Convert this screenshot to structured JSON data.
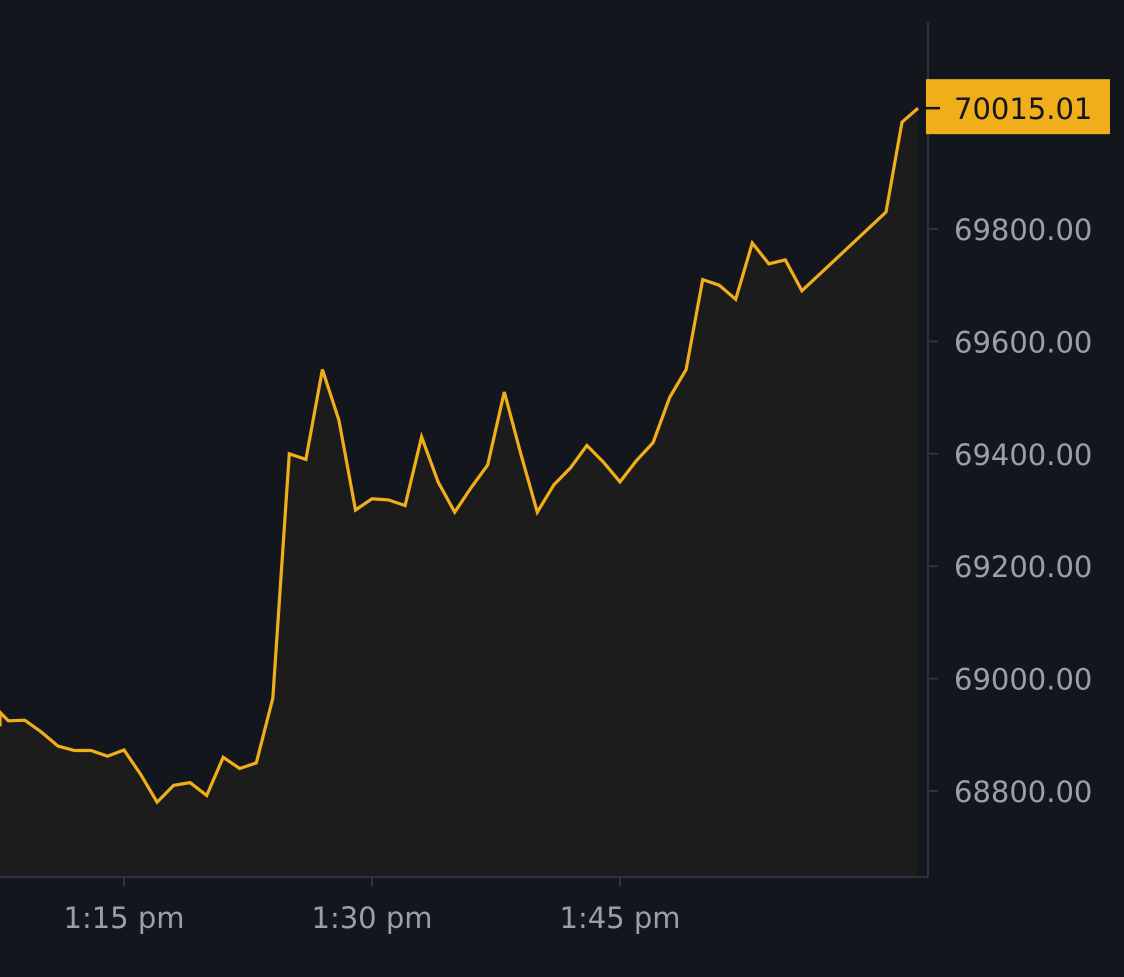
{
  "chart_data": {
    "type": "area",
    "title": "",
    "xlabel": "",
    "ylabel": "",
    "x_ticks": [
      "1:15 pm",
      "1:30 pm",
      "1:45 pm"
    ],
    "y_ticks": [
      "68800.00",
      "69000.00",
      "69200.00",
      "69400.00",
      "69600.00",
      "69800.00"
    ],
    "xlim": [
      "1:06 pm",
      "1:56 pm"
    ],
    "ylim": [
      68640,
      70160
    ],
    "last_price": "70015.01",
    "grid": false,
    "colors": {
      "background": "#13161d",
      "line": "#f0ae1a",
      "fill": "#1d1c1d",
      "axis": "#2e3340",
      "tick_text": "#9aa0aa",
      "price_label_bg": "#f0ae1a",
      "price_label_text": "#13161d"
    },
    "series": [
      {
        "x": [
          "1:06 pm",
          "1:07 pm",
          "1:08 pm",
          "1:09 pm",
          "1:10 pm",
          "1:11 pm",
          "1:12 pm",
          "1:13 pm",
          "1:14 pm",
          "1:15 pm",
          "1:16 pm",
          "1:17 pm",
          "1:18 pm",
          "1:19 pm",
          "1:20 pm",
          "1:21 pm",
          "1:22 pm",
          "1:23 pm",
          "1:24 pm",
          "1:25 pm",
          "1:26 pm",
          "1:27 pm",
          "1:28 pm",
          "1:29 pm",
          "1:30 pm",
          "1:31 pm",
          "1:32 pm",
          "1:33 pm",
          "1:34 pm",
          "1:35 pm",
          "1:36 pm",
          "1:37 pm",
          "1:38 pm",
          "1:39 pm",
          "1:40 pm",
          "1:41 pm",
          "1:42 pm",
          "1:43 pm",
          "1:44 pm",
          "1:45 pm",
          "1:46 pm",
          "1:47 pm",
          "1:48 pm",
          "1:49 pm",
          "1:50 pm",
          "1:51 pm",
          "1:52 pm",
          "1:53 pm",
          "1:54 pm",
          "1:55 pm",
          "1:56 pm"
        ],
        "y": [
          68915,
          68940,
          68925,
          68926,
          68905,
          68880,
          68872,
          68872,
          68862,
          68873,
          68830,
          68780,
          68810,
          68815,
          68792,
          68860,
          68840,
          68850,
          68965,
          69400,
          69390,
          69550,
          69460,
          69300,
          69320,
          69318,
          69308,
          69430,
          69350,
          69296,
          69340,
          69380,
          69510,
          69400,
          69296,
          69345,
          69375,
          69415,
          69385,
          69350,
          69388,
          69420,
          69500,
          69550,
          69710,
          69700,
          69675,
          69690,
          69705,
          69730,
          69775
        ]
      }
    ],
    "x_extra": [
      "1:53 pm",
      "1:54 pm",
      "1:55 pm",
      "1:56 pm",
      "1:56 pm"
    ],
    "y_extra": [
      69775,
      69738,
      69745,
      69690,
      69830
    ]
  },
  "price_tail": {
    "y": [
      69990,
      70015.01
    ]
  }
}
